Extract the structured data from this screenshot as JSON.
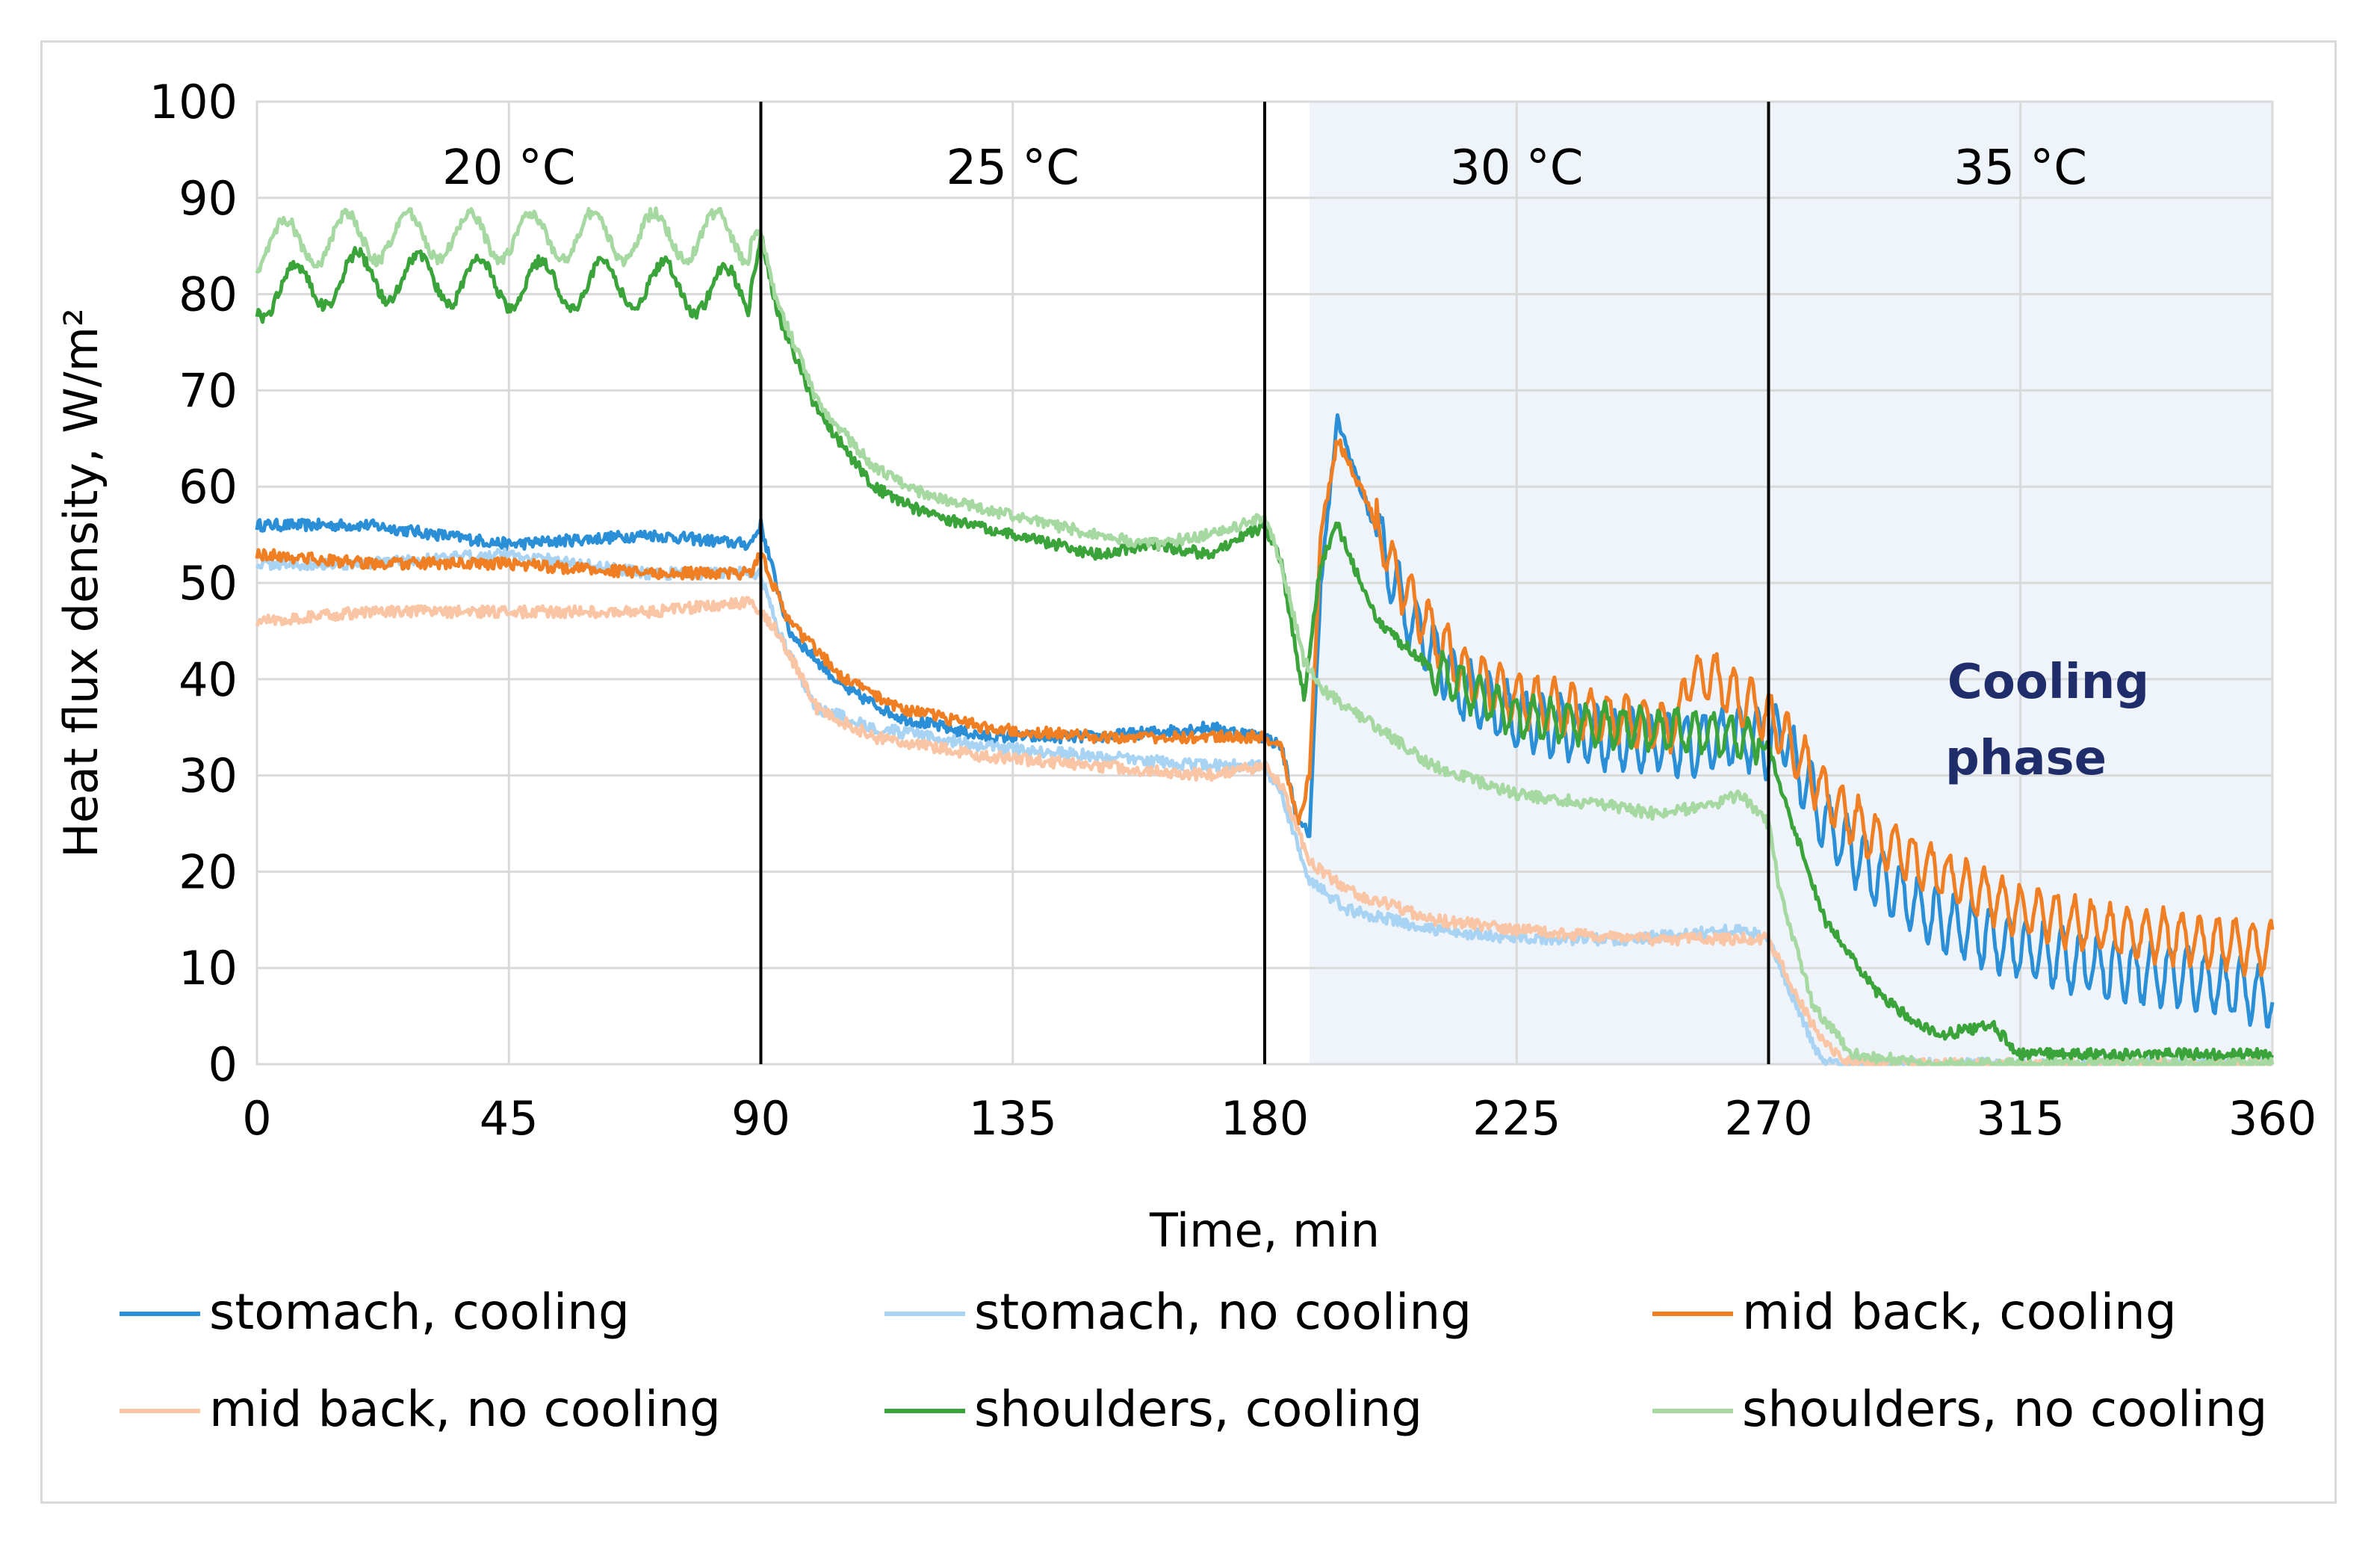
{
  "chart_data": {
    "type": "line",
    "xlabel": "Time, min",
    "ylabel": "Heat flux density, W/m²",
    "xlim": [
      0,
      360
    ],
    "ylim": [
      0,
      100
    ],
    "x_ticks": [
      "0",
      "45",
      "90",
      "135",
      "180",
      "225",
      "270",
      "315",
      "360"
    ],
    "y_ticks": [
      "0",
      "10",
      "20",
      "30",
      "40",
      "50",
      "60",
      "70",
      "80",
      "90",
      "100"
    ],
    "phase_boundaries": [
      90,
      180,
      270
    ],
    "phases": [
      {
        "label": "20 °C",
        "x_center": 45
      },
      {
        "label": "25 °C",
        "x_center": 135
      },
      {
        "label": "30 °C",
        "x_center": 225
      },
      {
        "label": "35 °C",
        "x_center": 315
      }
    ],
    "shaded_region": {
      "x_start": 188,
      "x_end": 360,
      "color": "#eef4fa"
    },
    "annotation": {
      "lines": [
        "Cooling",
        "phase"
      ],
      "x": 320,
      "y": 36
    },
    "legend_position": "bottom",
    "series": [
      {
        "name": "stomach, cooling",
        "color": "#2a8fd6",
        "x": [
          0,
          20,
          45,
          70,
          88,
          90,
          95,
          105,
          115,
          130,
          150,
          170,
          180,
          183,
          186,
          188,
          190,
          193,
          197,
          205,
          215,
          225,
          240,
          255,
          265,
          270,
          272,
          280,
          290,
          300,
          315,
          330,
          345,
          360
        ],
        "y": [
          56,
          56,
          54,
          55,
          54,
          56,
          45,
          39,
          36,
          34,
          34,
          35,
          34,
          33,
          25,
          24,
          50,
          67,
          60,
          47,
          39,
          36,
          34,
          33,
          34,
          33,
          35,
          25,
          19,
          15,
          12,
          10,
          9,
          7
        ],
        "osc": [
          {
            "from": 200,
            "amp": 3
          }
        ]
      },
      {
        "name": "stomach, no cooling",
        "color": "#a9d3f2",
        "x": [
          0,
          20,
          45,
          70,
          88,
          90,
          93,
          100,
          110,
          130,
          150,
          170,
          180,
          183,
          188,
          195,
          210,
          225,
          245,
          265,
          270,
          275,
          278,
          280,
          300,
          360
        ],
        "y": [
          52,
          52,
          53,
          51,
          51,
          51,
          45,
          37,
          35,
          33,
          32,
          31,
          31,
          28,
          19,
          16,
          14,
          13,
          13,
          14,
          13,
          6,
          2,
          0,
          0,
          0
        ],
        "osc": []
      },
      {
        "name": "mid back, cooling",
        "color": "#f07f24",
        "x": [
          0,
          20,
          45,
          70,
          88,
          90,
          95,
          105,
          115,
          130,
          150,
          170,
          180,
          183,
          186,
          188,
          190,
          193,
          197,
          205,
          215,
          225,
          240,
          254,
          255,
          260,
          270,
          272,
          280,
          290,
          300,
          315,
          330,
          345,
          360
        ],
        "y": [
          53,
          52,
          52,
          51,
          51,
          53,
          46,
          40,
          37,
          35,
          34,
          34,
          34,
          33,
          25,
          30,
          55,
          65,
          60,
          49,
          41,
          38,
          36,
          35,
          40,
          40,
          36,
          35,
          28,
          23,
          20,
          16,
          14,
          13,
          12
        ],
        "osc": [
          {
            "from": 200,
            "amp": 2.5
          }
        ]
      },
      {
        "name": "mid back, no cooling",
        "color": "#f9c5a4",
        "x": [
          0,
          20,
          45,
          70,
          88,
          90,
          93,
          100,
          110,
          130,
          150,
          170,
          180,
          183,
          188,
          195,
          210,
          225,
          245,
          265,
          270,
          276,
          280,
          285,
          300,
          360
        ],
        "y": [
          46,
          47,
          47,
          47,
          48,
          47,
          45,
          37,
          34,
          32,
          31,
          30,
          31,
          29,
          21,
          18,
          15,
          14,
          13,
          13,
          13,
          6,
          2,
          0,
          0,
          0
        ],
        "osc": []
      },
      {
        "name": "shoulders, cooling",
        "color": "#3aa33a",
        "x": [
          0,
          20,
          45,
          70,
          88,
          90,
          93,
          100,
          110,
          120,
          135,
          150,
          160,
          170,
          180,
          183,
          185,
          187,
          190,
          193,
          200,
          210,
          225,
          245,
          265,
          270,
          272,
          280,
          290,
          300,
          310,
          315,
          340,
          360
        ],
        "y": [
          80,
          82,
          81,
          81,
          80,
          86,
          78,
          68,
          60,
          57,
          55,
          53,
          54,
          53,
          56,
          52,
          45,
          38,
          52,
          56,
          46,
          41,
          36,
          35,
          34,
          33,
          29,
          15,
          7,
          3,
          4,
          1,
          1,
          1
        ],
        "osc": [
          {
            "from": 0,
            "to": 88,
            "amp": 2.5,
            "period": 11
          },
          {
            "from": 210,
            "to": 268,
            "amp": 2
          }
        ]
      },
      {
        "name": "shoulders, no cooling",
        "color": "#a6d9a1",
        "x": [
          0,
          20,
          45,
          70,
          88,
          90,
          93,
          100,
          110,
          120,
          135,
          150,
          160,
          170,
          180,
          183,
          187,
          190,
          200,
          210,
          225,
          240,
          250,
          260,
          265,
          268,
          270,
          272,
          278,
          285,
          300,
          360
        ],
        "y": [
          85,
          86,
          86,
          86,
          86,
          86,
          79,
          69,
          62,
          59,
          57,
          55,
          54,
          55,
          57,
          52,
          42,
          39,
          35,
          31,
          28,
          27,
          26,
          27,
          28,
          26,
          25,
          18,
          6,
          1,
          0,
          0
        ],
        "osc": [
          {
            "from": 0,
            "to": 88,
            "amp": 2.5,
            "period": 11
          }
        ]
      }
    ]
  }
}
